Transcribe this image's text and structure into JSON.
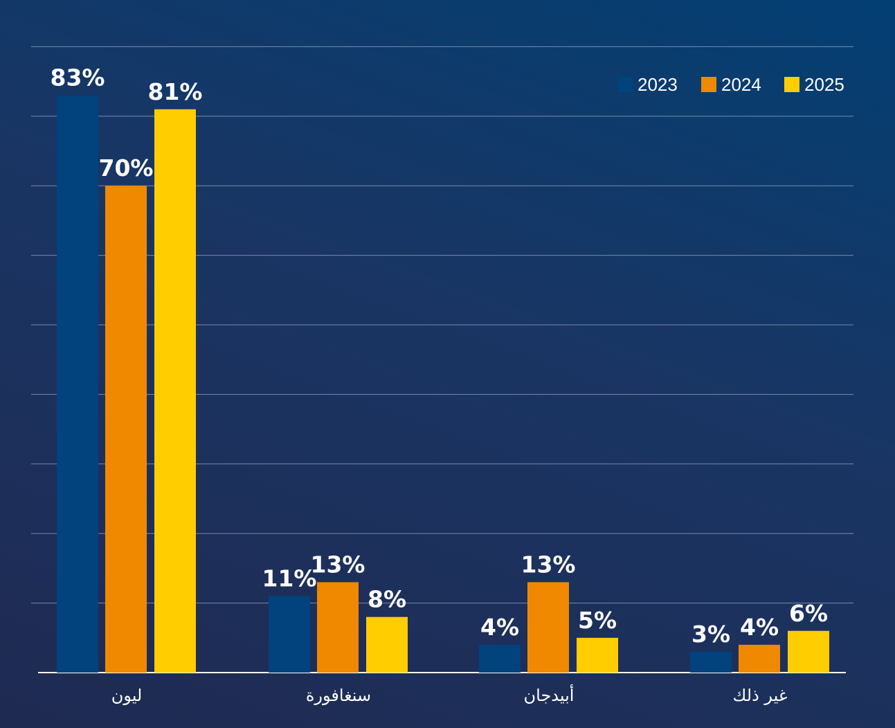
{
  "chart_data": {
    "type": "bar",
    "title": "",
    "xlabel": "",
    "ylabel": "",
    "categories": [
      "ليون",
      "سنغافورة",
      "أبيدجان",
      "غير ذلك"
    ],
    "series": [
      {
        "name": "2023",
        "color": "#02427d",
        "values": [
          83,
          11,
          4,
          3
        ]
      },
      {
        "name": "2024",
        "color": "#f08900",
        "values": [
          70,
          13,
          13,
          4
        ]
      },
      {
        "name": "2025",
        "color": "#ffcd00",
        "values": [
          81,
          8,
          5,
          6
        ]
      }
    ],
    "value_suffix": "%",
    "ylim": [
      0,
      90
    ],
    "grid": true,
    "y_tick_labels_shown": false,
    "legend_position": "top-right"
  }
}
